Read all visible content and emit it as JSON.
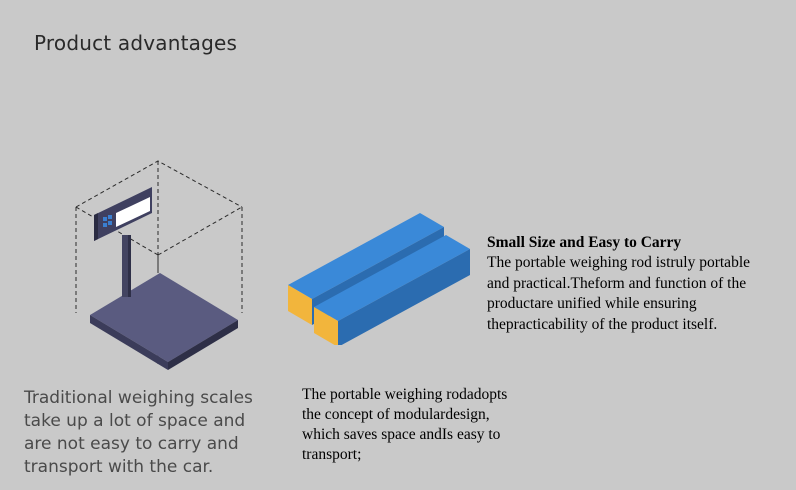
{
  "page": {
    "title": "Product advantages"
  },
  "illustrations": {
    "scale_icon": "weighing-scale-icon",
    "rod_icon": "portable-weighing-rod-icon"
  },
  "captions": {
    "left": "Traditional weighing scales\ntake up a lot of space and\nare not easy  to  carry and\ntransport with the car.",
    "middle": "The portable weighing rodadopts\nthe concept of modulardesign,\nwhich saves space andIs easy to\ntransport;"
  },
  "feature": {
    "heading": "Small Size and Easy to Carry",
    "body": "The portable weighing rod istruly portable\nand practical.Theform and function of the\nproductare unified while ensuring\nthepracticability of the product itself."
  },
  "colors": {
    "background": "#c9c9c9",
    "platform": "#4f5073",
    "rod_top": "#3c87d4",
    "rod_side": "#2e6fb4",
    "rod_end": "#f0b43c"
  }
}
